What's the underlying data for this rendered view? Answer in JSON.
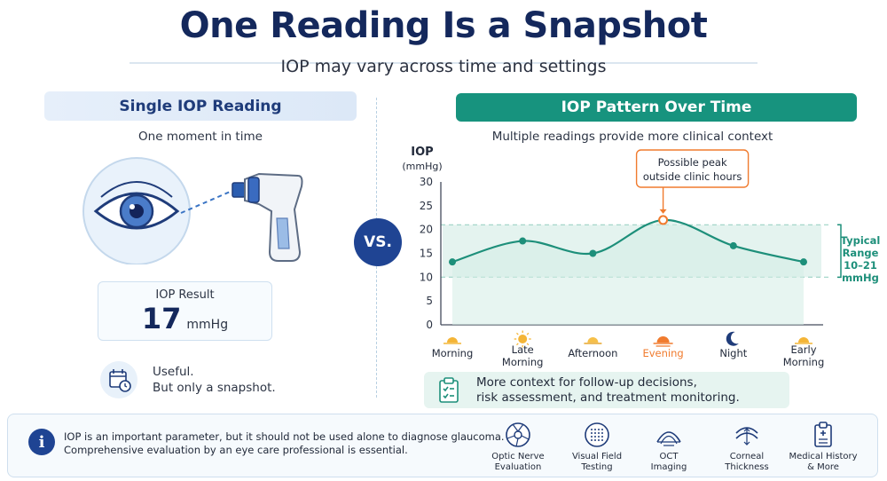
{
  "header": {
    "title": "One Reading Is a Snapshot",
    "subtitle": "IOP may vary across time and settings"
  },
  "left": {
    "heading": "Single IOP Reading",
    "caption": "One moment in time",
    "result_label": "IOP Result",
    "result_value": "17",
    "result_unit": "mmHg",
    "note_line1": "Useful.",
    "note_line2": "But only a snapshot."
  },
  "vs": "VS.",
  "right": {
    "heading": "IOP Pattern Over Time",
    "caption": "Multiple readings provide more clinical context",
    "context_line1": "More context for follow-up decisions,",
    "context_line2": "risk assessment, and treatment monitoring."
  },
  "chart_data": {
    "type": "line",
    "ylabel": "IOP",
    "yunit": "(mmHg)",
    "yticks": [
      0,
      5,
      10,
      15,
      20,
      25,
      30
    ],
    "ylim": [
      0,
      30
    ],
    "categories": [
      "Morning",
      "Late Morning",
      "Afternoon",
      "Evening",
      "Night",
      "Early Morning"
    ],
    "category_icons": [
      "sunrise-icon",
      "sun-icon",
      "afternoon-sun-icon",
      "sunset-icon",
      "moon-icon",
      "sunrise-icon"
    ],
    "series": [
      {
        "values": [
          13.2,
          17.6,
          15.0,
          22.0,
          16.6,
          13.2
        ]
      }
    ],
    "typical_range": [
      10,
      21
    ],
    "typical_label": [
      "Typical",
      "Range",
      "10–21",
      "mmHg"
    ],
    "annotation": {
      "index": 3,
      "line1": "Possible peak",
      "line2": "outside clinic hours"
    },
    "colors": {
      "line": "#1d8f7a",
      "highlight": "#f07b2e",
      "range": "#e4f3ef",
      "axis": "#444c5c"
    }
  },
  "footer": {
    "disclaimer_line1": "IOP is an important parameter, but it should not be used alone to diagnose glaucoma.",
    "disclaimer_line2": "Comprehensive evaluation by an eye care professional is essential.",
    "factors": [
      {
        "line1": "Optic Nerve",
        "line2": "Evaluation",
        "icon": "optic-nerve-icon"
      },
      {
        "line1": "Visual Field",
        "line2": "Testing",
        "icon": "visual-field-icon"
      },
      {
        "line1": "OCT",
        "line2": "Imaging",
        "icon": "oct-icon"
      },
      {
        "line1": "Corneal",
        "line2": "Thickness",
        "icon": "cornea-icon"
      },
      {
        "line1": "Medical History",
        "line2": "& More",
        "icon": "clipboard-icon"
      }
    ]
  }
}
